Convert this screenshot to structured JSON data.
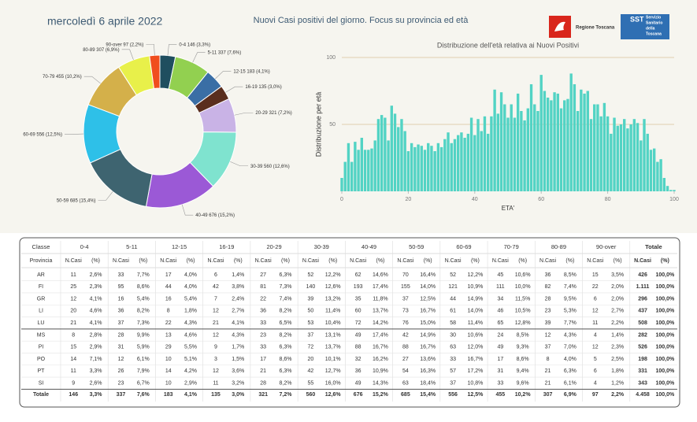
{
  "header": {
    "date": "mercoledì 6 aprile 2022",
    "title": "Nuovi Casi positivi del giorno. Focus su provincia ed età",
    "logo_left": "Regione Toscana",
    "logo_right_short": "SST",
    "logo_right": [
      "Servizio",
      "Sanitario",
      "della",
      "Toscana"
    ]
  },
  "chart_data": [
    {
      "type": "pie",
      "donut": true,
      "categories": [
        "0-4",
        "5-11",
        "12-15",
        "16-19",
        "20-29",
        "30-39",
        "40-49",
        "50-59",
        "60-69",
        "70-79",
        "80-89",
        "90-over"
      ],
      "values": [
        146,
        337,
        183,
        135,
        321,
        560,
        676,
        685,
        556,
        455,
        307,
        97
      ],
      "value_labels": [
        "146 (3,3%)",
        "337 (7,6%)",
        "183 (4,1%)",
        "135 (3,0%)",
        "321 (7,2%)",
        "560 (12,6%)",
        "676 (15,2%)",
        "685 (15,4%)",
        "556 (12,5%)",
        "455 (10,2%)",
        "307 (6,9%)",
        "97 (2,2%)"
      ],
      "colors": [
        "#1f4e5f",
        "#92d050",
        "#3a6ea5",
        "#5a2e1e",
        "#c9b3e6",
        "#7fe3cf",
        "#9b59d6",
        "#3e6470",
        "#2ec0e8",
        "#d4b04a",
        "#e8f04a",
        "#f04e1e"
      ]
    },
    {
      "type": "bar",
      "title": "Distribuzione dell'età relativa ai Nuovi Positivi",
      "y_label": "Distribuzione per età",
      "x_label": "ETA'",
      "color": "#52d3c4",
      "grid": true,
      "x": [
        0,
        1,
        2,
        3,
        4,
        5,
        6,
        7,
        8,
        9,
        10,
        11,
        12,
        13,
        14,
        15,
        16,
        17,
        18,
        19,
        20,
        21,
        22,
        23,
        24,
        25,
        26,
        27,
        28,
        29,
        30,
        31,
        32,
        33,
        34,
        35,
        36,
        37,
        38,
        39,
        40,
        41,
        42,
        43,
        44,
        45,
        46,
        47,
        48,
        49,
        50,
        51,
        52,
        53,
        54,
        55,
        56,
        57,
        58,
        59,
        60,
        61,
        62,
        63,
        64,
        65,
        66,
        67,
        68,
        69,
        70,
        71,
        72,
        73,
        74,
        75,
        76,
        77,
        78,
        79,
        80,
        81,
        82,
        83,
        84,
        85,
        86,
        87,
        88,
        89,
        90,
        91,
        92,
        93,
        94,
        95,
        96,
        97,
        98,
        99,
        100
      ],
      "values": [
        10,
        22,
        36,
        22,
        37,
        31,
        40,
        31,
        31,
        32,
        38,
        54,
        57,
        55,
        38,
        64,
        58,
        48,
        54,
        45,
        30,
        36,
        33,
        35,
        34,
        31,
        36,
        34,
        30,
        36,
        33,
        39,
        44,
        36,
        39,
        42,
        44,
        40,
        43,
        55,
        42,
        54,
        45,
        56,
        43,
        56,
        76,
        58,
        74,
        65,
        55,
        65,
        55,
        73,
        60,
        53,
        62,
        80,
        65,
        60,
        87,
        75,
        70,
        68,
        74,
        73,
        62,
        68,
        69,
        88,
        80,
        60,
        76,
        73,
        75,
        54,
        65,
        65,
        56,
        66,
        56,
        43,
        55,
        49,
        50,
        54,
        47,
        50,
        54,
        51,
        38,
        54,
        43,
        31,
        32,
        22,
        24,
        10,
        4,
        1,
        1
      ],
      "xlim": [
        0,
        100
      ],
      "xticks": [
        0,
        20,
        40,
        60,
        80,
        100
      ],
      "ylim": [
        0,
        100
      ],
      "yticks": [
        50,
        100
      ]
    }
  ],
  "table": {
    "header": [
      "Classe",
      "0-4",
      "5-11",
      "12-15",
      "16-19",
      "20-29",
      "30-39",
      "40-49",
      "50-59",
      "60-69",
      "70-79",
      "80-89",
      "90-over",
      "Totale"
    ],
    "subheader": [
      "Provincia",
      "N.Casi",
      "(%)",
      "N.Casi",
      "(%)",
      "N.Casi",
      "(%)",
      "N.Casi",
      "(%)",
      "N.Casi",
      "(%)",
      "N.Casi",
      "(%)",
      "N.Casi",
      "(%)",
      "N.Casi",
      "(%)",
      "N.Casi",
      "(%)",
      "N.Casi",
      "(%)",
      "N.Casi",
      "(%)",
      "N.Casi",
      "(%)",
      "N.Casi",
      "(%)"
    ],
    "rows": [
      [
        "AR",
        "11",
        "2,6%",
        "33",
        "7,7%",
        "17",
        "4,0%",
        "6",
        "1,4%",
        "27",
        "6,3%",
        "52",
        "12,2%",
        "62",
        "14,6%",
        "70",
        "16,4%",
        "52",
        "12,2%",
        "45",
        "10,6%",
        "36",
        "8,5%",
        "15",
        "3,5%",
        "426",
        "100,0%"
      ],
      [
        "FI",
        "25",
        "2,3%",
        "95",
        "8,6%",
        "44",
        "4,0%",
        "42",
        "3,8%",
        "81",
        "7,3%",
        "140",
        "12,6%",
        "193",
        "17,4%",
        "155",
        "14,0%",
        "121",
        "10,9%",
        "111",
        "10,0%",
        "82",
        "7,4%",
        "22",
        "2,0%",
        "1.111",
        "100,0%"
      ],
      [
        "GR",
        "12",
        "4,1%",
        "16",
        "5,4%",
        "16",
        "5,4%",
        "7",
        "2,4%",
        "22",
        "7,4%",
        "39",
        "13,2%",
        "35",
        "11,8%",
        "37",
        "12,5%",
        "44",
        "14,9%",
        "34",
        "11,5%",
        "28",
        "9,5%",
        "6",
        "2,0%",
        "296",
        "100,0%"
      ],
      [
        "LI",
        "20",
        "4,6%",
        "36",
        "8,2%",
        "8",
        "1,8%",
        "12",
        "2,7%",
        "36",
        "8,2%",
        "50",
        "11,4%",
        "60",
        "13,7%",
        "73",
        "16,7%",
        "61",
        "14,0%",
        "46",
        "10,5%",
        "23",
        "5,3%",
        "12",
        "2,7%",
        "437",
        "100,0%"
      ],
      [
        "LU",
        "21",
        "4,1%",
        "37",
        "7,3%",
        "22",
        "4,3%",
        "21",
        "4,1%",
        "33",
        "6,5%",
        "53",
        "10,4%",
        "72",
        "14,2%",
        "76",
        "15,0%",
        "58",
        "11,4%",
        "65",
        "12,8%",
        "39",
        "7,7%",
        "11",
        "2,2%",
        "508",
        "100,0%"
      ],
      [
        "MS",
        "8",
        "2,8%",
        "28",
        "9,9%",
        "13",
        "4,6%",
        "12",
        "4,3%",
        "23",
        "8,2%",
        "37",
        "13,1%",
        "49",
        "17,4%",
        "42",
        "14,9%",
        "30",
        "10,6%",
        "24",
        "8,5%",
        "12",
        "4,3%",
        "4",
        "1,4%",
        "282",
        "100,0%"
      ],
      [
        "PI",
        "15",
        "2,9%",
        "31",
        "5,9%",
        "29",
        "5,5%",
        "9",
        "1,7%",
        "33",
        "6,3%",
        "72",
        "13,7%",
        "88",
        "16,7%",
        "88",
        "16,7%",
        "63",
        "12,0%",
        "49",
        "9,3%",
        "37",
        "7,0%",
        "12",
        "2,3%",
        "526",
        "100,0%"
      ],
      [
        "PO",
        "14",
        "7,1%",
        "12",
        "6,1%",
        "10",
        "5,1%",
        "3",
        "1,5%",
        "17",
        "8,6%",
        "20",
        "10,1%",
        "32",
        "16,2%",
        "27",
        "13,6%",
        "33",
        "16,7%",
        "17",
        "8,6%",
        "8",
        "4,0%",
        "5",
        "2,5%",
        "198",
        "100,0%"
      ],
      [
        "PT",
        "11",
        "3,3%",
        "26",
        "7,9%",
        "14",
        "4,2%",
        "12",
        "3,6%",
        "21",
        "6,3%",
        "42",
        "12,7%",
        "36",
        "10,9%",
        "54",
        "16,3%",
        "57",
        "17,2%",
        "31",
        "9,4%",
        "21",
        "6,3%",
        "6",
        "1,8%",
        "331",
        "100,0%"
      ],
      [
        "SI",
        "9",
        "2,6%",
        "23",
        "6,7%",
        "10",
        "2,9%",
        "11",
        "3,2%",
        "28",
        "8,2%",
        "55",
        "16,0%",
        "49",
        "14,3%",
        "63",
        "18,4%",
        "37",
        "10,8%",
        "33",
        "9,6%",
        "21",
        "6,1%",
        "4",
        "1,2%",
        "343",
        "100,0%"
      ],
      [
        "Totale",
        "146",
        "3,3%",
        "337",
        "7,6%",
        "183",
        "4,1%",
        "135",
        "3,0%",
        "321",
        "7,2%",
        "560",
        "12,6%",
        "676",
        "15,2%",
        "685",
        "15,4%",
        "556",
        "12,5%",
        "455",
        "10,2%",
        "307",
        "6,9%",
        "97",
        "2,2%",
        "4.458",
        "100,0%"
      ]
    ]
  }
}
